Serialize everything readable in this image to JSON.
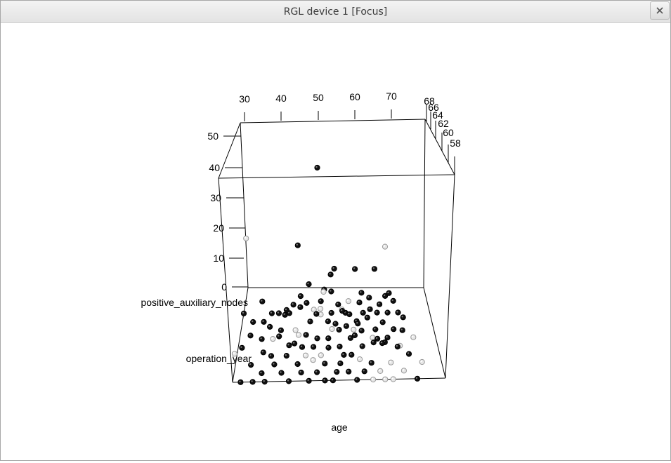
{
  "window": {
    "title": "RGL device 1 [Focus]",
    "close_glyph": "×",
    "close_icon": "close-icon"
  },
  "chart_data": {
    "type": "scatter3d",
    "xlabel": "age",
    "ylabel": "operation_year",
    "zlabel": "positive_auxiliary_nodes",
    "x_ticks": [
      "30",
      "40",
      "50",
      "60",
      "70"
    ],
    "y_ticks": [
      "58",
      "60",
      "62",
      "64",
      "66",
      "68"
    ],
    "z_ticks": [
      "0",
      "10",
      "20",
      "30",
      "40",
      "50"
    ],
    "xlim": [
      30,
      83
    ],
    "ylim": [
      58,
      69
    ],
    "zlim": [
      0,
      52
    ],
    "point_colors": {
      "dark": "#111111",
      "light": "#e6e6e6"
    },
    "points": [
      [
        52,
        64,
        46,
        "d"
      ],
      [
        35,
        59,
        35,
        "l"
      ],
      [
        46,
        66,
        20,
        "d"
      ],
      [
        61,
        61,
        23,
        "d"
      ],
      [
        53,
        62,
        15,
        "l"
      ],
      [
        49,
        64,
        13,
        "d"
      ],
      [
        47,
        61,
        13,
        "d"
      ],
      [
        55,
        63,
        13,
        "d"
      ],
      [
        67,
        65,
        15,
        "d"
      ],
      [
        71,
        68,
        15,
        "l"
      ],
      [
        56,
        66,
        13,
        "d"
      ],
      [
        55,
        67,
        9,
        "d"
      ],
      [
        51,
        62,
        9,
        "d"
      ],
      [
        71,
        65,
        8,
        "d"
      ],
      [
        43,
        63,
        8,
        "d"
      ],
      [
        55,
        61,
        7,
        "l"
      ],
      [
        52,
        64,
        6,
        "l"
      ],
      [
        30,
        60,
        3,
        "l"
      ],
      [
        44,
        60,
        5,
        "d"
      ],
      [
        58,
        65,
        3,
        "d"
      ],
      [
        63,
        66,
        3,
        "d"
      ],
      [
        69,
        64,
        2,
        "d"
      ],
      [
        72,
        61,
        2,
        "d"
      ],
      [
        35,
        67,
        1,
        "d"
      ],
      [
        46,
        63,
        1,
        "l"
      ],
      [
        40,
        66,
        0,
        "d"
      ],
      [
        52,
        65,
        2,
        "l"
      ],
      [
        54,
        61,
        2,
        "d"
      ],
      [
        60,
        67,
        1,
        "l"
      ],
      [
        66,
        62,
        1,
        "d"
      ],
      [
        74,
        63,
        2,
        "d"
      ],
      [
        78,
        60,
        0,
        "l"
      ],
      [
        33,
        63,
        1,
        "d"
      ],
      [
        38,
        64,
        1,
        "d"
      ],
      [
        42,
        65,
        2,
        "d"
      ],
      [
        44,
        67,
        0,
        "d"
      ],
      [
        47,
        62,
        0,
        "d"
      ],
      [
        50,
        60,
        1,
        "l"
      ],
      [
        55,
        66,
        0,
        "d"
      ],
      [
        57,
        62,
        0,
        "d"
      ],
      [
        59,
        64,
        1,
        "d"
      ],
      [
        62,
        60,
        1,
        "l"
      ],
      [
        64,
        66,
        0,
        "d"
      ],
      [
        67,
        64,
        0,
        "d"
      ],
      [
        69,
        62,
        1,
        "d"
      ],
      [
        71,
        66,
        0,
        "d"
      ],
      [
        73,
        62,
        0,
        "l"
      ],
      [
        29,
        66,
        0,
        "d"
      ],
      [
        37,
        61,
        1,
        "d"
      ],
      [
        41,
        62,
        3,
        "d"
      ],
      [
        48,
        66,
        3,
        "d"
      ],
      [
        53,
        68,
        2,
        "d"
      ],
      [
        56,
        63,
        4,
        "d"
      ],
      [
        61,
        62,
        3,
        "d"
      ],
      [
        63,
        63,
        2,
        "d"
      ],
      [
        66,
        67,
        2,
        "d"
      ],
      [
        68,
        61,
        3,
        "d"
      ],
      [
        75,
        65,
        1,
        "d"
      ],
      [
        36,
        65,
        0,
        "d"
      ],
      [
        39,
        63,
        0,
        "l"
      ],
      [
        43,
        61,
        0,
        "d"
      ],
      [
        45,
        64,
        0,
        "l"
      ],
      [
        49,
        65,
        0,
        "d"
      ],
      [
        51,
        63,
        0,
        "d"
      ],
      [
        53,
        60,
        0,
        "d"
      ],
      [
        56,
        59,
        0,
        "d"
      ],
      [
        58,
        61,
        0,
        "d"
      ],
      [
        60,
        63,
        0,
        "d"
      ],
      [
        62,
        65,
        0,
        "d"
      ],
      [
        65,
        60,
        0,
        "d"
      ],
      [
        67,
        59,
        0,
        "l"
      ],
      [
        70,
        60,
        0,
        "l"
      ],
      [
        72,
        64,
        0,
        "d"
      ],
      [
        75,
        61,
        0,
        "d"
      ],
      [
        77,
        63,
        0,
        "l"
      ],
      [
        31,
        62,
        0,
        "d"
      ],
      [
        34,
        60,
        0,
        "d"
      ],
      [
        37,
        59,
        0,
        "d"
      ],
      [
        40,
        60,
        0,
        "d"
      ],
      [
        42,
        59,
        0,
        "d"
      ],
      [
        44,
        58,
        0,
        "d"
      ],
      [
        47,
        59,
        0,
        "d"
      ],
      [
        49,
        58,
        0,
        "d"
      ],
      [
        51,
        59,
        0,
        "d"
      ],
      [
        53,
        58,
        0,
        "d"
      ],
      [
        55,
        58,
        0,
        "d"
      ],
      [
        57,
        60,
        0,
        "d"
      ],
      [
        59,
        59,
        0,
        "d"
      ],
      [
        61,
        58,
        0,
        "d"
      ],
      [
        63,
        59,
        0,
        "d"
      ],
      [
        65,
        58,
        0,
        "l"
      ],
      [
        68,
        58,
        0,
        "l"
      ],
      [
        70,
        58,
        0,
        "l"
      ],
      [
        73,
        59,
        0,
        "l"
      ],
      [
        76,
        58,
        0,
        "d"
      ],
      [
        32,
        58,
        0,
        "d"
      ],
      [
        35,
        58,
        0,
        "d"
      ],
      [
        38,
        58,
        0,
        "d"
      ],
      [
        39,
        61,
        0,
        "d"
      ],
      [
        46,
        60,
        0,
        "d"
      ],
      [
        48,
        61,
        0,
        "l"
      ],
      [
        50,
        62,
        0,
        "d"
      ],
      [
        52,
        61,
        0,
        "l"
      ],
      [
        54,
        63,
        0,
        "d"
      ],
      [
        57,
        64,
        0,
        "d"
      ],
      [
        59,
        66,
        0,
        "d"
      ],
      [
        61,
        64,
        0,
        "l"
      ],
      [
        63,
        62,
        0,
        "d"
      ],
      [
        66,
        63,
        0,
        "l"
      ],
      [
        68,
        66,
        0,
        "d"
      ],
      [
        70,
        63,
        0,
        "d"
      ],
      [
        74,
        66,
        0,
        "d"
      ],
      [
        41,
        64,
        0,
        "d"
      ],
      [
        43,
        66,
        0,
        "d"
      ],
      [
        46,
        68,
        0,
        "d"
      ],
      [
        48,
        63,
        1,
        "d"
      ],
      [
        50,
        66,
        1,
        "l"
      ],
      [
        52,
        67,
        1,
        "d"
      ],
      [
        58,
        66,
        1,
        "l"
      ],
      [
        60,
        65,
        2,
        "d"
      ],
      [
        62,
        63,
        4,
        "d"
      ],
      [
        64,
        68,
        1,
        "d"
      ],
      [
        66,
        66,
        1,
        "d"
      ],
      [
        69,
        67,
        0,
        "d"
      ],
      [
        71,
        68,
        0,
        "d"
      ],
      [
        73,
        67,
        1,
        "d"
      ],
      [
        33,
        65,
        0,
        "d"
      ],
      [
        36,
        63,
        0,
        "d"
      ],
      [
        38,
        66,
        0,
        "d"
      ],
      [
        45,
        62,
        1,
        "d"
      ],
      [
        54,
        65,
        0,
        "d"
      ],
      [
        57,
        67,
        0,
        "d"
      ],
      [
        60,
        61,
        0,
        "d"
      ],
      [
        65,
        65,
        1,
        "d"
      ],
      [
        67,
        62,
        2,
        "d"
      ]
    ]
  }
}
